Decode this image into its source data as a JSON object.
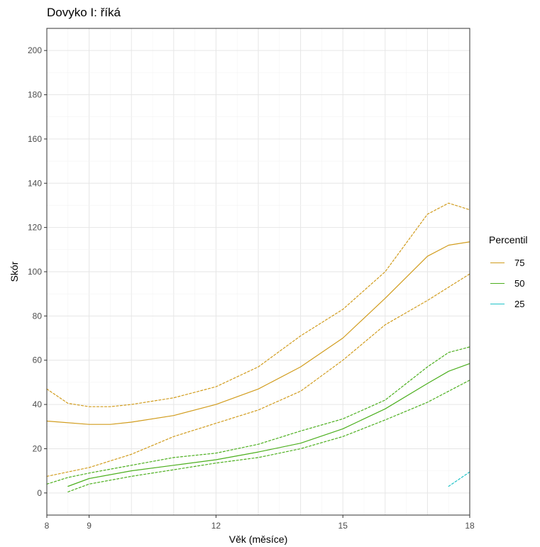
{
  "chart_data": {
    "type": "line",
    "title": "Dovyko I: říká",
    "xlabel": "Věk (měsíce)",
    "ylabel": "Skór",
    "xlim": [
      8,
      18
    ],
    "ylim": [
      -10,
      210
    ],
    "x_ticks": [
      8,
      9,
      12,
      15,
      18
    ],
    "y_ticks": [
      0,
      20,
      40,
      60,
      80,
      100,
      120,
      140,
      160,
      180,
      200
    ],
    "grid": true,
    "legend": {
      "title": "Percentil",
      "position": "right",
      "items": [
        {
          "label": "75",
          "color": "#D19C1D"
        },
        {
          "label": "50",
          "color": "#4CAF1E"
        },
        {
          "label": "25",
          "color": "#1FC3C8"
        }
      ]
    },
    "series": [
      {
        "name": "75",
        "style": "solid",
        "color": "#D19C1D",
        "x": [
          8,
          9,
          9.5,
          10,
          11,
          12,
          13,
          14,
          15,
          16,
          17,
          17.5,
          18
        ],
        "y": [
          32.5,
          31,
          31,
          32,
          35,
          40,
          47,
          57,
          70,
          88,
          107,
          112,
          113.5
        ]
      },
      {
        "style": "dashed",
        "color": "#D19C1D",
        "x": [
          8,
          8.5,
          9,
          9.5,
          10,
          11,
          12,
          13,
          14,
          15,
          16,
          17,
          17.5,
          18
        ],
        "y": [
          47,
          40.5,
          39,
          39,
          40,
          43,
          48,
          57,
          71,
          83,
          100,
          126,
          131,
          128
        ]
      },
      {
        "style": "dashed",
        "color": "#D19C1D",
        "x": [
          8,
          9,
          10,
          11,
          12,
          13,
          14,
          15,
          16,
          17,
          18
        ],
        "y": [
          7.5,
          11.5,
          17.5,
          25.5,
          31.5,
          37.5,
          46,
          60,
          76,
          87,
          99
        ]
      },
      {
        "name": "50",
        "style": "solid",
        "color": "#4CAF1E",
        "x": [
          8.5,
          9,
          10,
          11,
          12,
          13,
          14,
          15,
          16,
          17,
          17.5,
          18
        ],
        "y": [
          3,
          6.5,
          10,
          12.5,
          15,
          18.5,
          22.5,
          29,
          38,
          49.5,
          55,
          58.5
        ]
      },
      {
        "style": "dashed",
        "color": "#4CAF1E",
        "x": [
          8,
          8.5,
          9,
          10,
          11,
          12,
          13,
          14,
          15,
          16,
          17,
          17.5,
          18
        ],
        "y": [
          4,
          7,
          9,
          12.5,
          16,
          18,
          22,
          28,
          33.5,
          42,
          57,
          63.5,
          66
        ]
      },
      {
        "style": "dashed",
        "color": "#4CAF1E",
        "x": [
          8.5,
          9,
          10,
          11,
          12,
          13,
          14,
          15,
          16,
          17,
          18
        ],
        "y": [
          0.5,
          4,
          7.5,
          10.5,
          13.5,
          16,
          20,
          25.5,
          33,
          41,
          51
        ]
      },
      {
        "name": "25",
        "style": "dashed",
        "color": "#1FC3C8",
        "x": [
          17.5,
          18
        ],
        "y": [
          3,
          9.5
        ]
      }
    ]
  }
}
